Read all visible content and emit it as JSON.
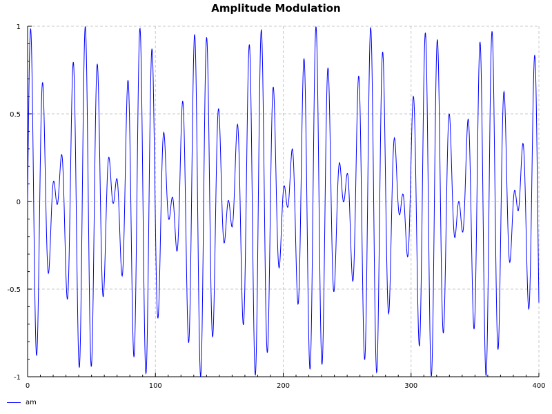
{
  "chart_data": {
    "type": "line",
    "title": "Amplitude Modulation",
    "xlabel": "",
    "ylabel": "",
    "xlim": [
      0,
      400
    ],
    "ylim": [
      -1,
      1
    ],
    "x_ticks": [
      0,
      100,
      200,
      300,
      400
    ],
    "x_tick_labels": [
      "0",
      "100",
      "200",
      "300",
      "400"
    ],
    "y_ticks": [
      -1,
      -0.5,
      0,
      0.5,
      1
    ],
    "y_tick_labels": [
      "-1",
      "-0.5",
      "0",
      "0.5",
      "1"
    ],
    "grid": true,
    "legend_position": "bottom-left",
    "series": [
      {
        "name": "am",
        "color": "#0000ff",
        "formula": "y = cos(2*pi*x/90) * sin(2*pi*x/9.5)",
        "x_start": 0,
        "x_end": 400,
        "x_step": 0.25
      }
    ]
  }
}
